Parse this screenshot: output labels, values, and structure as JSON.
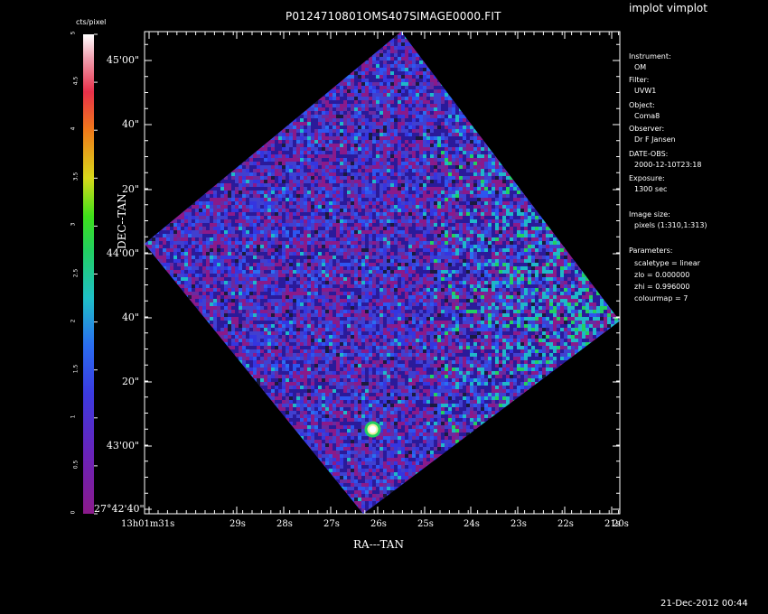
{
  "app_title": "implot vimplot",
  "timestamp": "21-Dec-2012 00:44",
  "info": [
    {
      "label": "Instrument:",
      "value": "OM"
    },
    {
      "label": "Filter:",
      "value": "UVW1"
    },
    {
      "label": "Object:",
      "value": "Coma8"
    },
    {
      "label": "Observer:",
      "value": "Dr F Jansen"
    },
    {
      "label": "DATE-OBS:",
      "value": "2000-12-10T23:18"
    },
    {
      "label": "Exposure:",
      "value": "1300 sec"
    },
    {
      "label": "Image size:",
      "value": "pixels (1:310,1:313)"
    }
  ],
  "parameters": {
    "label": "Parameters:",
    "items": [
      "scaletype = linear",
      "zlo = 0.000000",
      "zhi = 0.996000",
      "colourmap =   7"
    ]
  },
  "chart_data": {
    "type": "heatmap",
    "title": "P0124710801OMS407SIMAGE0000.FIT",
    "xlabel": "RA---TAN",
    "ylabel": "DEC--TAN",
    "x_ticks": [
      "13h01m31s",
      "29s",
      "28s",
      "27s",
      "26s",
      "25s",
      "24s",
      "23s",
      "22s",
      "21s",
      "20s"
    ],
    "y_ticks": [
      "27°42'40\"",
      "43'00\"",
      "20\"",
      "40\"",
      "44'00\"",
      "20\"",
      "40\"",
      "45'00\""
    ],
    "colorbar": {
      "label": "cts/pixel",
      "range": [
        0,
        5
      ],
      "ticks": [
        "0",
        "0.5",
        "1",
        "1.5",
        "2",
        "2.5",
        "3",
        "3.5",
        "4",
        "4.5",
        "5"
      ],
      "colormap": "rainbow (purple-blue-cyan-green-yellow-red-white)"
    },
    "image_extent": {
      "x": [
        0,
        310
      ],
      "y": [
        0,
        313
      ]
    },
    "footprint_corners_fraction": [
      [
        0.54,
        0.0
      ],
      [
        1.0,
        0.6
      ],
      [
        0.46,
        1.0
      ],
      [
        0.0,
        0.44
      ]
    ],
    "bright_source_fraction": [
      0.48,
      0.825
    ],
    "scale": {
      "zlo": 0.0,
      "zhi": 0.996
    }
  }
}
